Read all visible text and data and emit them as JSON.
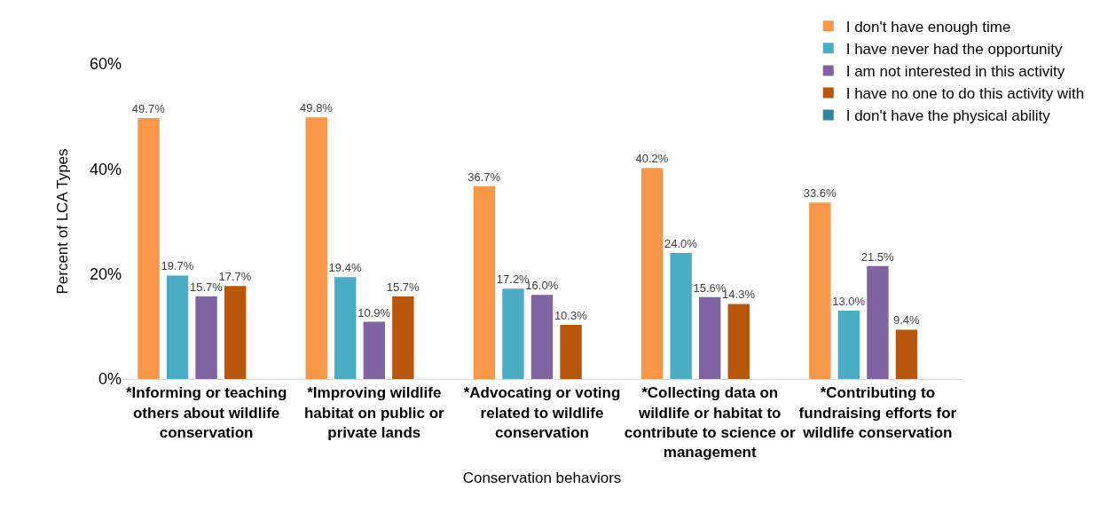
{
  "chart_data": {
    "type": "bar",
    "xlabel": "Conservation behaviors",
    "ylabel": "Percent of LCA Types",
    "categories": [
      "*Informing or teaching others about wildlife conservation",
      "*Improving wildlife habitat on public or private lands",
      "*Advocating or voting related to wildlife conservation",
      "*Collecting data on wildlife or habitat to contribute to science or management",
      "*Contributing to fundraising efforts for wildlife conservation"
    ],
    "series": [
      {
        "name": "I don't have enough time",
        "color": "#f79646",
        "values": [
          49.7,
          49.8,
          36.7,
          40.2,
          33.6
        ],
        "value_labels": [
          "49.7%",
          "49.8%",
          "36.7%",
          "40.2%",
          "33.6%"
        ]
      },
      {
        "name": "I have never had the opportunity",
        "color": "#4bacc6",
        "values": [
          19.7,
          19.4,
          17.2,
          24.0,
          13.0
        ],
        "value_labels": [
          "19.7%",
          "19.4%",
          "17.2%",
          "24.0%",
          "13.0%"
        ]
      },
      {
        "name": "I am not interested in this activity",
        "color": "#8064a2",
        "values": [
          15.7,
          10.9,
          16.0,
          15.6,
          21.5
        ],
        "value_labels": [
          "15.7%",
          "10.9%",
          "16.0%",
          "15.6%",
          "21.5%"
        ]
      },
      {
        "name": "I have no one to do this activity with",
        "color": "#b8560b",
        "values": [
          17.7,
          15.7,
          10.3,
          14.3,
          9.4
        ],
        "value_labels": [
          "17.7%",
          "15.7%",
          "10.3%",
          "14.3%",
          "9.4%"
        ]
      },
      {
        "name": "I don't have the physical ability",
        "color": "#31859c",
        "values": [
          null,
          null,
          null,
          null,
          null
        ]
      }
    ],
    "ylim": [
      0,
      60
    ],
    "yticks": [
      {
        "value": 0,
        "label": "0%"
      },
      {
        "value": 20,
        "label": "20%"
      },
      {
        "value": 40,
        "label": "40%"
      },
      {
        "value": 60,
        "label": "60%"
      }
    ],
    "grid": false,
    "legend": "top right"
  }
}
